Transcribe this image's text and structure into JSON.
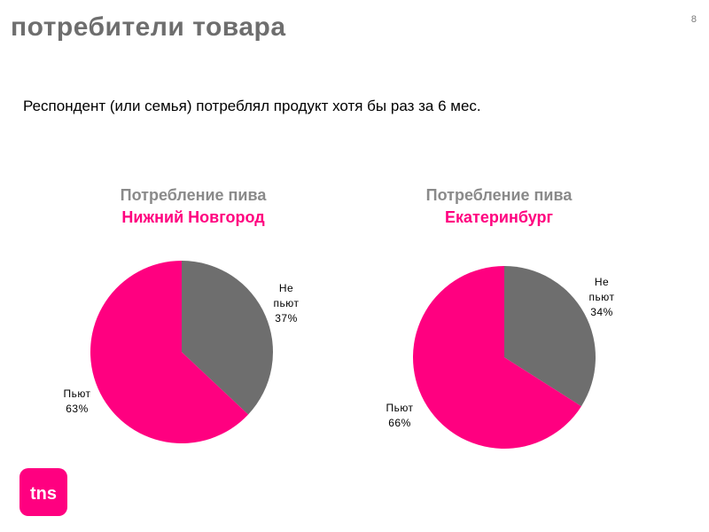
{
  "header": {
    "title": "потребители товара",
    "page_number": "8"
  },
  "subtitle": "Респондент (или семья) потреблял продукт хотя бы раз за 6 мес.",
  "brand": {
    "logo_text": "tns",
    "color": "#ff0080"
  },
  "colors": {
    "drink": "#ff0080",
    "not_drink": "#6e6e6e"
  },
  "chart_data": [
    {
      "type": "pie",
      "title": "Потребление пива",
      "subtitle": "Нижний Новгород",
      "slices": [
        {
          "label_1": "Не",
          "label_2": "пьют",
          "value": 37,
          "value_text": "37%",
          "color": "#6e6e6e"
        },
        {
          "label_1": "Пьют",
          "label_2": "",
          "value": 63,
          "value_text": "63%",
          "color": "#ff0080"
        }
      ]
    },
    {
      "type": "pie",
      "title": "Потребление пива",
      "subtitle": "Екатеринбург",
      "slices": [
        {
          "label_1": "Не",
          "label_2": "пьют",
          "value": 34,
          "value_text": "34%",
          "color": "#6e6e6e"
        },
        {
          "label_1": "Пьют",
          "label_2": "",
          "value": 66,
          "value_text": "66%",
          "color": "#ff0080"
        }
      ]
    }
  ]
}
